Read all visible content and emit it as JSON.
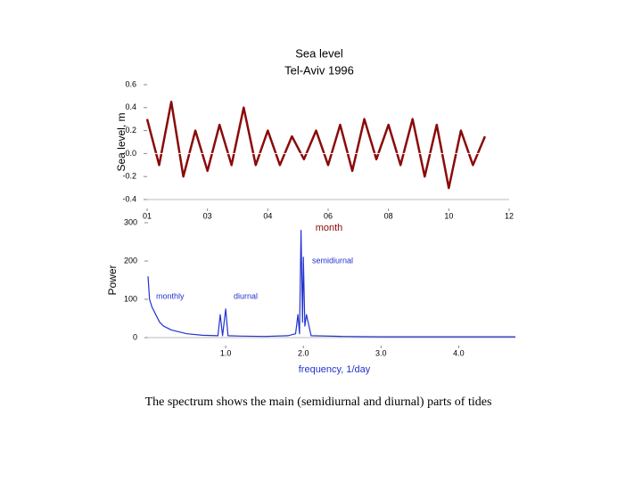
{
  "chart_data": [
    {
      "type": "line",
      "title": "Sea level",
      "subtitle": "Tel-Aviv 1996",
      "y_label": "Sea level, m",
      "x_label": "month",
      "x": [
        0,
        0.2,
        0.4,
        0.6,
        0.8,
        1,
        1.2,
        1.4,
        1.6,
        1.8,
        2,
        2.2,
        2.4,
        2.6,
        2.8,
        3,
        3.2,
        3.4,
        3.6,
        3.8,
        4,
        4.2,
        4.4,
        4.6,
        4.8,
        5,
        5.2,
        5.4,
        5.6
      ],
      "series": [
        {
          "color": "#8b0a0a",
          "values": [
            0.3,
            -0.1,
            0.45,
            -0.2,
            0.2,
            -0.15,
            0.25,
            -0.1,
            0.4,
            -0.1,
            0.2,
            -0.1,
            0.15,
            -0.05,
            0.2,
            -0.1,
            0.25,
            -0.15,
            0.3,
            -0.05,
            0.25,
            -0.1,
            0.3,
            -0.2,
            0.25,
            -0.3,
            0.2,
            -0.1,
            0.15
          ]
        }
      ],
      "xlim": [
        0,
        6
      ],
      "xticks": [
        {
          "value": 0,
          "label": "01"
        },
        {
          "value": 1,
          "label": "03"
        },
        {
          "value": 2,
          "label": "04"
        },
        {
          "value": 3,
          "label": "06"
        },
        {
          "value": 4,
          "label": "08"
        },
        {
          "value": 5,
          "label": "10"
        },
        {
          "value": 6,
          "label": "12"
        }
      ],
      "ylim": [
        -0.4,
        0.6
      ],
      "yticks": [
        0.6,
        0.4,
        0.2,
        {
          "value": 0,
          "label": "0.0"
        },
        -0.2,
        -0.4
      ]
    },
    {
      "type": "line",
      "y_label": "Power",
      "x_label": "frequency, 1/day",
      "annotations": [
        "monthly",
        "diurnal",
        "semidiurnal"
      ],
      "x": [
        0,
        0.02,
        0.05,
        0.1,
        0.15,
        0.2,
        0.3,
        0.4,
        0.5,
        0.7,
        0.9,
        0.93,
        0.96,
        1.0,
        1.03,
        1.2,
        1.5,
        1.8,
        1.9,
        1.93,
        1.95,
        1.97,
        1.99,
        2.0,
        2.02,
        2.04,
        2.1,
        2.5,
        3.0,
        3.5,
        4.0,
        4.73
      ],
      "series": [
        {
          "color": "#2233cc",
          "values": [
            160,
            100,
            80,
            60,
            40,
            30,
            20,
            15,
            10,
            6,
            5,
            60,
            5,
            75,
            5,
            4,
            3,
            5,
            10,
            60,
            10,
            280,
            40,
            210,
            30,
            60,
            5,
            3,
            2,
            2,
            2,
            2
          ]
        }
      ],
      "xlim": [
        0,
        4.73
      ],
      "xticks": [
        {
          "value": 1,
          "label": "1.0"
        },
        {
          "value": 2,
          "label": "2.0"
        },
        {
          "value": 3,
          "label": "3.0"
        },
        {
          "value": 4,
          "label": "4.0"
        }
      ],
      "ylim": [
        0,
        300
      ],
      "yticks": [
        0,
        100,
        200,
        300
      ]
    }
  ],
  "caption": "The spectrum shows the main (semidiurnal and diurnal) parts of tides"
}
